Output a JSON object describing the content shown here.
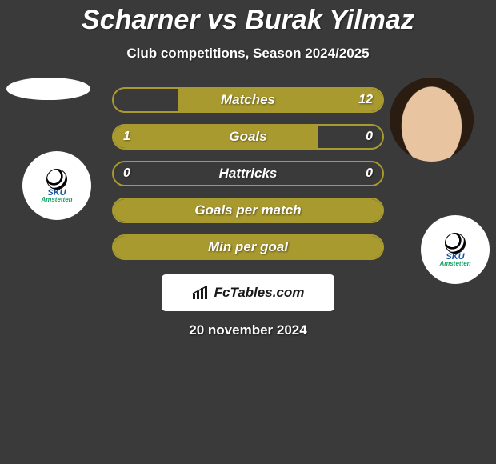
{
  "background_color": "#3a3a3a",
  "title": "Scharner vs Burak Yilmaz",
  "subtitle": "Club competitions, Season 2024/2025",
  "date": "20 november 2024",
  "accent_border": "#a99a2f",
  "accent_fill": "#a99a2f",
  "text_color": "#ffffff",
  "bars": [
    {
      "label": "Matches",
      "left_val": "",
      "right_val": "12",
      "left_pct": 0,
      "right_pct": 100,
      "fill_color": "#a99a2f"
    },
    {
      "label": "Goals",
      "left_val": "1",
      "right_val": "0",
      "left_pct": 100,
      "right_pct": 0,
      "fill_color": "#a99a2f"
    },
    {
      "label": "Hattricks",
      "left_val": "0",
      "right_val": "0",
      "left_pct": 0,
      "right_pct": 0,
      "fill_color": "#a99a2f"
    },
    {
      "label": "Goals per match",
      "left_val": "",
      "right_val": "",
      "left_pct": 100,
      "right_pct": 0,
      "fill_color": "#a99a2f",
      "left_full": true
    },
    {
      "label": "Min per goal",
      "left_val": "",
      "right_val": "",
      "left_pct": 100,
      "right_pct": 0,
      "fill_color": "#a99a2f",
      "left_full": true
    }
  ],
  "footer_brand": "FcTables.com",
  "footer_background": "#ffffff",
  "club_logo_text_line1": "SKU",
  "club_logo_text_line2": "Amstetten"
}
